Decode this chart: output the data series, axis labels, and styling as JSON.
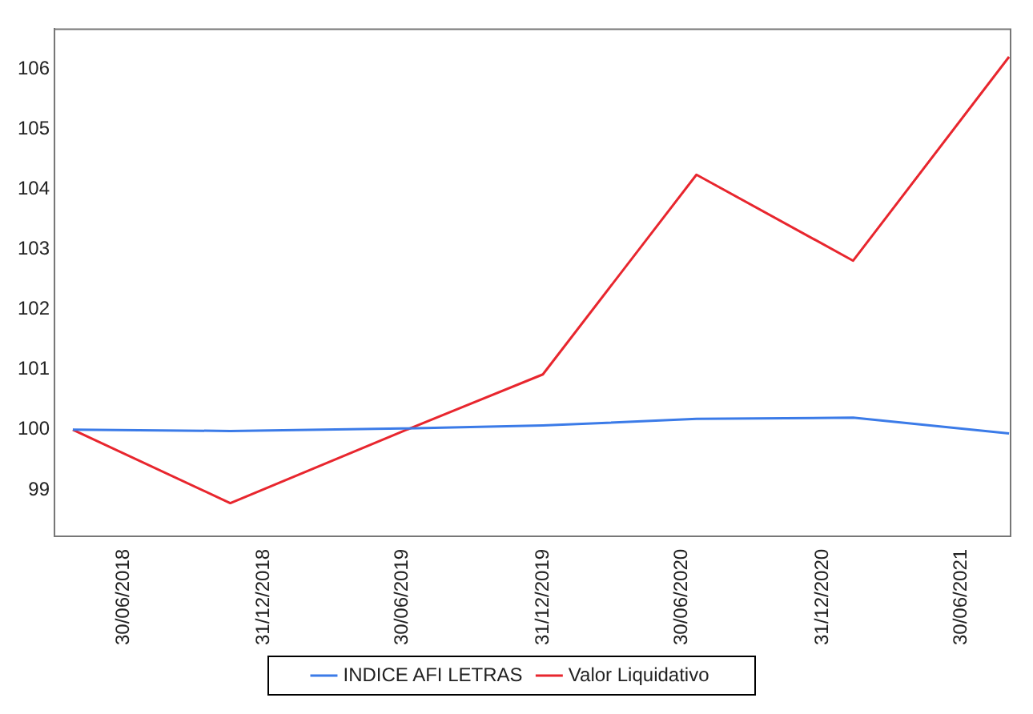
{
  "chart_data": {
    "type": "line",
    "x": [
      "2018-04-25",
      "2018-11-17",
      "2019-06-30",
      "2019-12-31",
      "2020-07-19",
      "2021-02-09",
      "2021-09-01"
    ],
    "series": [
      {
        "name": "INDICE AFI LETRAS",
        "color": "#3b7be8",
        "values": [
          100,
          99.98,
          100.02,
          100.07,
          100.18,
          100.2,
          99.94
        ]
      },
      {
        "name": "Valor Liquidativo",
        "color": "#e8262e",
        "values": [
          100,
          98.78,
          99.97,
          100.92,
          104.24,
          102.81,
          106.2
        ]
      }
    ],
    "xlim": [
      "2018-04-01",
      "2021-09-03"
    ],
    "xticks": [
      {
        "value": "2018-06-30",
        "label": "30/06/2018"
      },
      {
        "value": "2018-12-31",
        "label": "31/12/2018"
      },
      {
        "value": "2019-06-30",
        "label": "30/06/2019"
      },
      {
        "value": "2019-12-31",
        "label": "31/12/2019"
      },
      {
        "value": "2020-06-30",
        "label": "30/06/2020"
      },
      {
        "value": "2020-12-31",
        "label": "31/12/2020"
      },
      {
        "value": "2021-06-30",
        "label": "30/06/2021"
      }
    ],
    "ylim": [
      98.23,
      106.66
    ],
    "yticks": [
      99,
      100,
      101,
      102,
      103,
      104,
      105,
      106
    ],
    "grid": false,
    "legend": "bottom",
    "marker": "none",
    "line_style": "solid"
  }
}
